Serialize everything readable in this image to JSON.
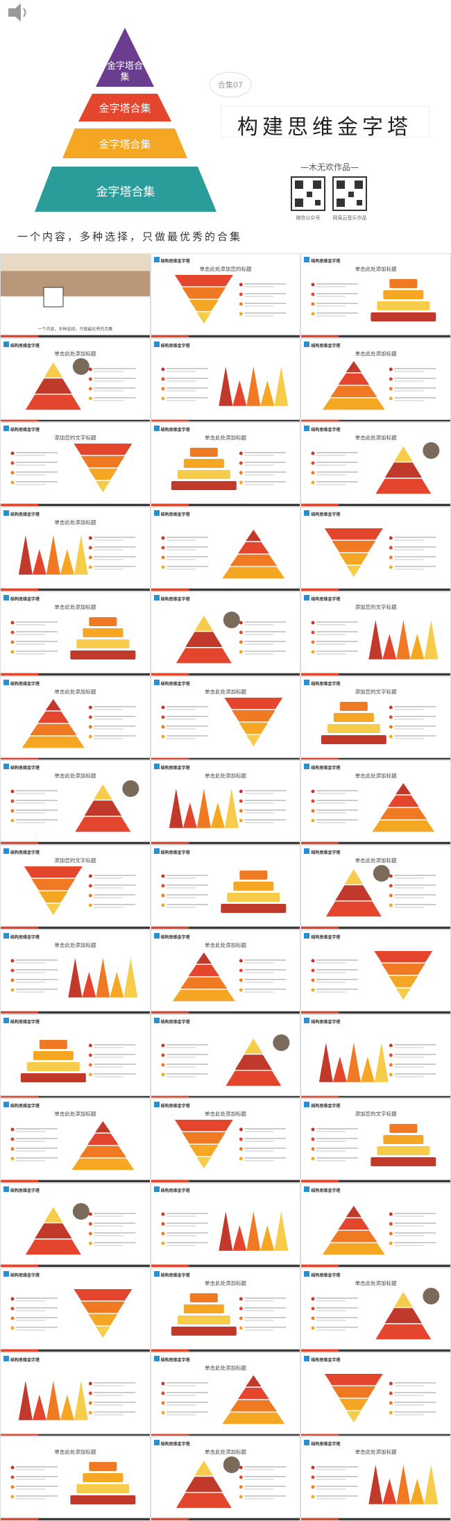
{
  "header": {
    "pyramid_labels": [
      "金字塔合集",
      "金字塔合集",
      "金字塔合集",
      "金字塔合集"
    ],
    "badge": "合集07",
    "title": "构建思维金字塔",
    "author": "—木无欢作品—",
    "qr_labels": [
      "微信公众号",
      "网易云音乐作品"
    ],
    "tagline": "一个内容，多种选择，只做最优秀的合集"
  },
  "slides": [
    {
      "caption": "一个内容，多种选择，只做最优秀的合集"
    },
    {
      "brand": "结构思维金字塔",
      "title": "单击此处添加您的标题"
    },
    {
      "brand": "结构思维金字塔",
      "title": "单击此处添加标题"
    },
    {
      "brand": "结构思维金字塔",
      "title": "单击此处添加标题"
    },
    {
      "brand": "结构思维金字塔"
    },
    {
      "brand": "结构思维金字塔",
      "title": "单击此处添加标题"
    },
    {
      "brand": "结构思维金字塔",
      "title": "添加您的文字标题"
    },
    {
      "brand": "结构思维金字塔",
      "title": "单击此处添加标题"
    },
    {
      "brand": "结构思维金字塔",
      "title": "单击此处添加标题"
    },
    {
      "brand": "结构思维金字塔",
      "title": "单击此处添加标题"
    },
    {
      "brand": "结构思维金字塔"
    },
    {
      "brand": "结构思维金字塔"
    },
    {
      "brand": "结构思维金字塔",
      "title": "单击此处添加标题"
    },
    {
      "brand": "结构思维金字塔"
    },
    {
      "brand": "结构思维金字塔",
      "title": "添加您的文字标题"
    },
    {
      "brand": "结构思维金字塔",
      "title": "单击此处添加标题"
    },
    {
      "brand": "结构思维金字塔",
      "title": "单击此处添加标题"
    },
    {
      "brand": "结构思维金字塔",
      "title": "添加您的文字标题"
    },
    {
      "brand": "结构思维金字塔",
      "title": "单击此处添加标题"
    },
    {
      "brand": "结构思维金字塔",
      "title": "单击此处添加标题"
    },
    {
      "brand": "结构思维金字塔",
      "title": "单击此处添加标题"
    },
    {
      "brand": "结构思维金字塔",
      "title": "添加您的文字标题"
    },
    {
      "brand": "结构思维金字塔"
    },
    {
      "brand": "结构思维金字塔",
      "title": "单击此处添加标题"
    },
    {
      "brand": "结构思维金字塔",
      "title": "单击此处添加标题"
    },
    {
      "brand": "结构思维金字塔",
      "title": "单击此处添加标题"
    },
    {
      "brand": "结构思维金字塔"
    },
    {
      "brand": "结构思维金字塔"
    },
    {
      "brand": "结构思维金字塔"
    },
    {
      "brand": "结构思维金字塔"
    },
    {
      "brand": "结构思维金字塔",
      "title": "单击此处添加标题"
    },
    {
      "brand": "结构思维金字塔",
      "title": "单击此处添加标题"
    },
    {
      "brand": "结构思维金字塔",
      "title": "添加您的文字标题"
    },
    {
      "brand": "结构思维金字塔"
    },
    {
      "brand": "结构思维金字塔"
    },
    {
      "brand": "结构思维金字塔"
    },
    {
      "brand": "结构思维金字塔"
    },
    {
      "brand": "结构思维金字塔",
      "title": "单击此处添加标题"
    },
    {
      "brand": "结构思维金字塔",
      "title": "单击此处添加标题"
    },
    {
      "brand": "结构思维金字塔"
    },
    {
      "brand": "结构思维金字塔",
      "title": "单击此处添加标题"
    },
    {
      "brand": "结构思维金字塔"
    },
    {
      "title": "单击此处添加标题"
    },
    {
      "brand": "结构思维金字塔",
      "title": "单击此处添加标题"
    },
    {
      "brand": "结构思维金字塔",
      "title": "单击此处添加标题"
    }
  ]
}
